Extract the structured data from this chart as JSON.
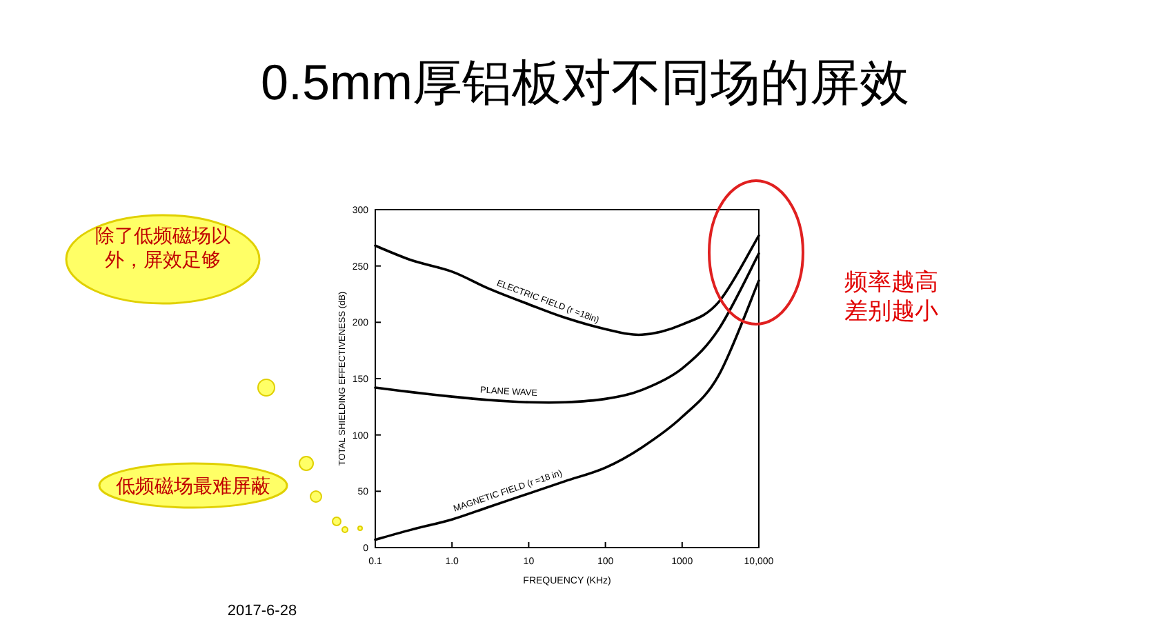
{
  "chart_data": {
    "type": "line",
    "title": "0.5mm厚铝板对不同场的屏效",
    "xlabel": "FREQUENCY (KHz)",
    "ylabel": "TOTAL SHIELDING EFFECTIVENESS (dB)",
    "x": [
      0.1,
      0.3,
      1,
      3,
      10,
      30,
      100,
      300,
      1000,
      3000,
      10000
    ],
    "series": [
      {
        "name": "ELECTRIC FIELD (r =18in)",
        "color": "#000000",
        "values": [
          268,
          255,
          245,
          230,
          216,
          204,
          194,
          189,
          198,
          218,
          277
        ]
      },
      {
        "name": "PLANE WAVE",
        "color": "#000000",
        "values": [
          142,
          138,
          134,
          131,
          129,
          129,
          132,
          140,
          159,
          194,
          261
        ]
      },
      {
        "name": "MAGNETIC FIELD (r =18 in)",
        "color": "#000000",
        "values": [
          7,
          16,
          25,
          36,
          48,
          59,
          71,
          89,
          116,
          153,
          237
        ]
      }
    ],
    "log": "x",
    "xlim": [
      0.1,
      10000
    ],
    "ylim": [
      0,
      300
    ],
    "xticks": [
      {
        "value": 0.1,
        "label": "0.1"
      },
      {
        "value": 1,
        "label": "1.0"
      },
      {
        "value": 10,
        "label": "10"
      },
      {
        "value": 100,
        "label": "100"
      },
      {
        "value": 1000,
        "label": "1000"
      },
      {
        "value": 10000,
        "label": "10,000"
      }
    ],
    "yticks": [
      0,
      50,
      100,
      150,
      200,
      250,
      300
    ],
    "grid": false,
    "annotations": [
      "除了低频磁场以外，屏效足够",
      "低频磁场最难屏蔽",
      "频率越高差别越小",
      "2017-6-28"
    ]
  }
}
